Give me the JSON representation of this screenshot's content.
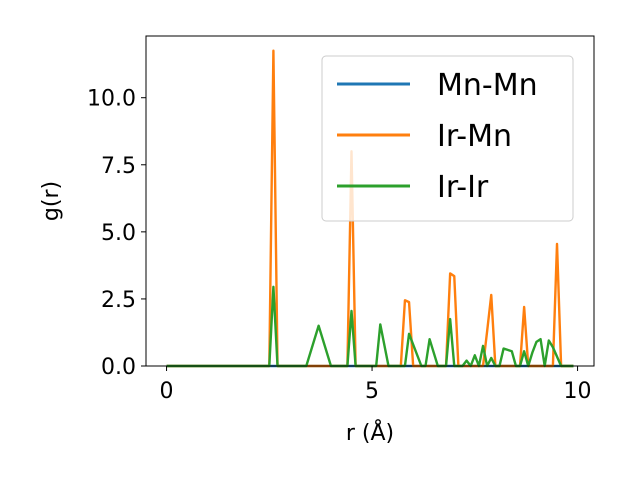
{
  "chart_data": {
    "type": "line",
    "title": "",
    "xlabel": "r (Å)",
    "ylabel": "g(r)",
    "xlim": [
      -0.5,
      10.4
    ],
    "ylim": [
      0,
      12.3
    ],
    "xticks": [
      0,
      5,
      10
    ],
    "xtick_labels": [
      "0",
      "5",
      "10"
    ],
    "yticks": [
      0,
      2.5,
      5,
      7.5,
      10
    ],
    "ytick_labels": [
      "0.0",
      "2.5",
      "5.0",
      "7.5",
      "10.0"
    ],
    "grid": false,
    "legend_position": "top-right",
    "series": [
      {
        "name": "Mn-Mn",
        "color": "#1f77b4",
        "x": [
          0,
          9.9
        ],
        "y": [
          0,
          0
        ]
      },
      {
        "name": "Ir-Mn",
        "color": "#ff7f0e",
        "x": [
          0,
          2.5,
          2.6,
          2.7,
          4.3,
          4.4,
          4.5,
          4.6,
          5.7,
          5.8,
          5.9,
          6.0,
          6.7,
          6.8,
          6.9,
          7.0,
          7.1,
          7.7,
          7.8,
          7.9,
          8.0,
          8.5,
          8.6,
          8.7,
          8.8,
          9.3,
          9.4,
          9.5,
          9.6,
          9.9
        ],
        "y": [
          0,
          0,
          11.75,
          0,
          0,
          0,
          8.0,
          0,
          0,
          2.45,
          2.38,
          0,
          0,
          0,
          3.45,
          3.35,
          0,
          0,
          1.3,
          2.65,
          0,
          0,
          0,
          2.2,
          0,
          0,
          0,
          4.55,
          0,
          0
        ]
      },
      {
        "name": "Ir-Ir",
        "color": "#2ca02c",
        "x": [
          0,
          2.5,
          2.6,
          2.7,
          3.4,
          3.7,
          4.0,
          4.4,
          4.5,
          4.6,
          5.1,
          5.2,
          5.4,
          5.7,
          5.8,
          5.9,
          6.2,
          6.3,
          6.4,
          6.6,
          6.7,
          6.8,
          6.9,
          7.0,
          7.2,
          7.3,
          7.4,
          7.5,
          7.6,
          7.7,
          7.8,
          7.9,
          8.0,
          8.1,
          8.2,
          8.3,
          8.4,
          8.5,
          8.6,
          8.7,
          8.8,
          8.9,
          9.0,
          9.1,
          9.2,
          9.3,
          9.4,
          9.5,
          9.6,
          9.7,
          9.8,
          9.9
        ],
        "y": [
          0,
          0,
          2.95,
          0,
          0,
          1.5,
          0,
          0,
          2.05,
          0,
          0,
          1.55,
          0,
          0,
          0,
          1.2,
          0,
          0,
          1.0,
          0,
          0,
          0,
          1.75,
          0,
          0,
          0.2,
          0,
          0.4,
          0,
          0.75,
          0,
          0.3,
          0,
          0,
          0.65,
          0.6,
          0.55,
          0,
          0,
          0.55,
          0,
          0.5,
          0.9,
          1.0,
          0,
          0.95,
          0.7,
          0.35,
          0,
          0,
          0,
          0
        ]
      }
    ]
  }
}
